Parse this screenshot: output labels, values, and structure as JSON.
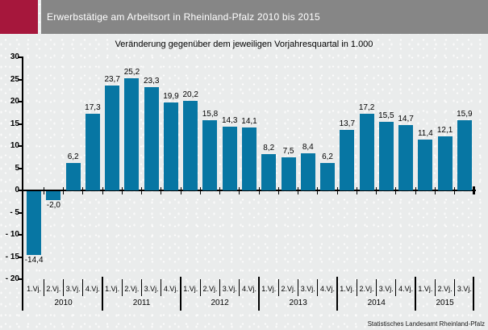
{
  "header": {
    "title": "Erwerbstätige am Arbeitsort in Rheinland-Pfalz 2010 bis 2015"
  },
  "subtitle": "Veränderung gegenüber dem jeweiligen Vorjahresquartal in 1.000",
  "footer": {
    "source": "Statistisches Landesamt Rheinland-Pfalz"
  },
  "colors": {
    "bar": "#0776A3",
    "accent_maroon": "#A6173C",
    "header_gray": "#868686",
    "background": "#EAECEC",
    "axis": "#000000",
    "title_text": "#FFFFFF"
  },
  "chart_data": {
    "type": "bar",
    "title": "Erwerbstätige am Arbeitsort in Rheinland-Pfalz 2010 bis 2015",
    "subtitle": "Veränderung gegenüber dem jeweiligen Vorjahresquartal in 1.000",
    "unit": "in 1.000",
    "categories": [
      "1.Vj.",
      "2.Vj.",
      "3.Vj.",
      "4.Vj.",
      "1.Vj.",
      "2.Vj.",
      "3.Vj.",
      "4.Vj.",
      "1.Vj.",
      "2.Vj.",
      "3.Vj.",
      "4.Vj.",
      "1.Vj.",
      "2.Vj.",
      "3.Vj.",
      "4.Vj.",
      "1.Vj.",
      "2.Vj.",
      "3.Vj.",
      "4.Vj.",
      "1.Vj.",
      "2.Vj.",
      "3.Vj."
    ],
    "values": [
      -14.4,
      -2.0,
      6.2,
      17.3,
      23.7,
      25.2,
      23.3,
      19.9,
      20.2,
      15.8,
      14.3,
      14.1,
      8.2,
      7.5,
      8.4,
      6.2,
      13.7,
      17.2,
      15.5,
      14.7,
      11.4,
      12.1,
      15.9
    ],
    "value_labels": [
      "-14,4",
      "-2,0",
      "6,2",
      "17,3",
      "23,7",
      "25,2",
      "23,3",
      "19,9",
      "20,2",
      "15,8",
      "14,3",
      "14,1",
      "8,2",
      "7,5",
      "8,4",
      "6,2",
      "13,7",
      "17,2",
      "15,5",
      "14,7",
      "11,4",
      "12,1",
      "15,9"
    ],
    "years": [
      {
        "label": "2010",
        "quarters": 4
      },
      {
        "label": "2011",
        "quarters": 4
      },
      {
        "label": "2012",
        "quarters": 4
      },
      {
        "label": "2013",
        "quarters": 4
      },
      {
        "label": "2014",
        "quarters": 4
      },
      {
        "label": "2015",
        "quarters": 3
      }
    ],
    "y_axis": {
      "min": -20,
      "max": 30,
      "step": 5,
      "tick_labels": [
        "30",
        "25",
        "20",
        "15",
        "10",
        "5",
        "0",
        "- 5",
        "- 10",
        "- 15",
        "- 20"
      ]
    },
    "grid": false,
    "legend": false,
    "bar_color": "#0776A3"
  }
}
